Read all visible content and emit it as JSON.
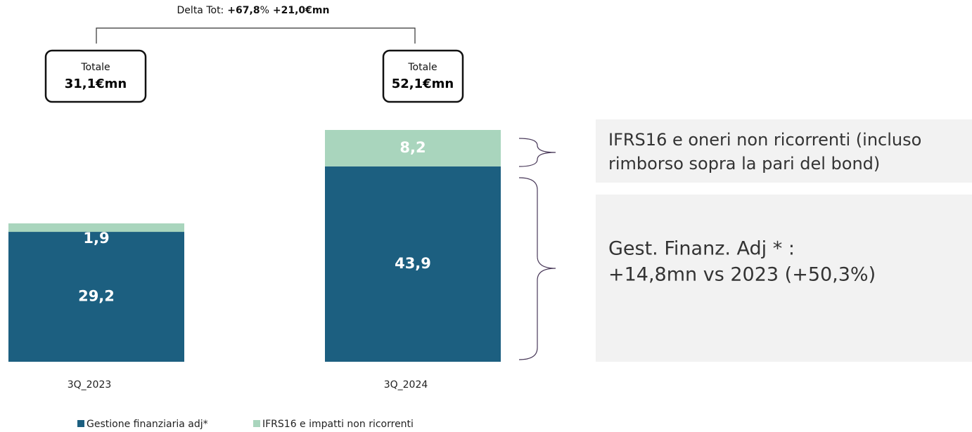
{
  "chart_data": {
    "type": "stacked_bar",
    "categories": [
      "3Q_2023",
      "3Q_2024"
    ],
    "series": [
      {
        "name": "Gestione finanziaria adj*",
        "color": "#1c5f80",
        "values": [
          29.2,
          43.9
        ],
        "value_labels": [
          "29,2",
          "43,9"
        ]
      },
      {
        "name": "IFRS16 e impatti non ricorrenti",
        "color": "#a9d5bd",
        "values": [
          1.9,
          8.2
        ],
        "value_labels": [
          "1,9",
          "8,2"
        ]
      }
    ],
    "delta": {
      "label": "Delta Tot:",
      "pct": "+67,8",
      "pct_unit": "%",
      "abs": "+21,0€mn"
    },
    "totals": [
      {
        "label": "Totale",
        "value_label": "31,1€mn"
      },
      {
        "label": "Totale",
        "value_label": "52,1€mn"
      }
    ],
    "notes": [
      {
        "lines": [
          "IFRS16 e oneri non ricorrenti (incluso",
          "rimborso sopra la pari del bond)"
        ]
      },
      {
        "lines": [
          "Gest. Finanz. Adj * :",
          "+14,8mn vs 2023 (+50,3%)"
        ]
      }
    ]
  }
}
